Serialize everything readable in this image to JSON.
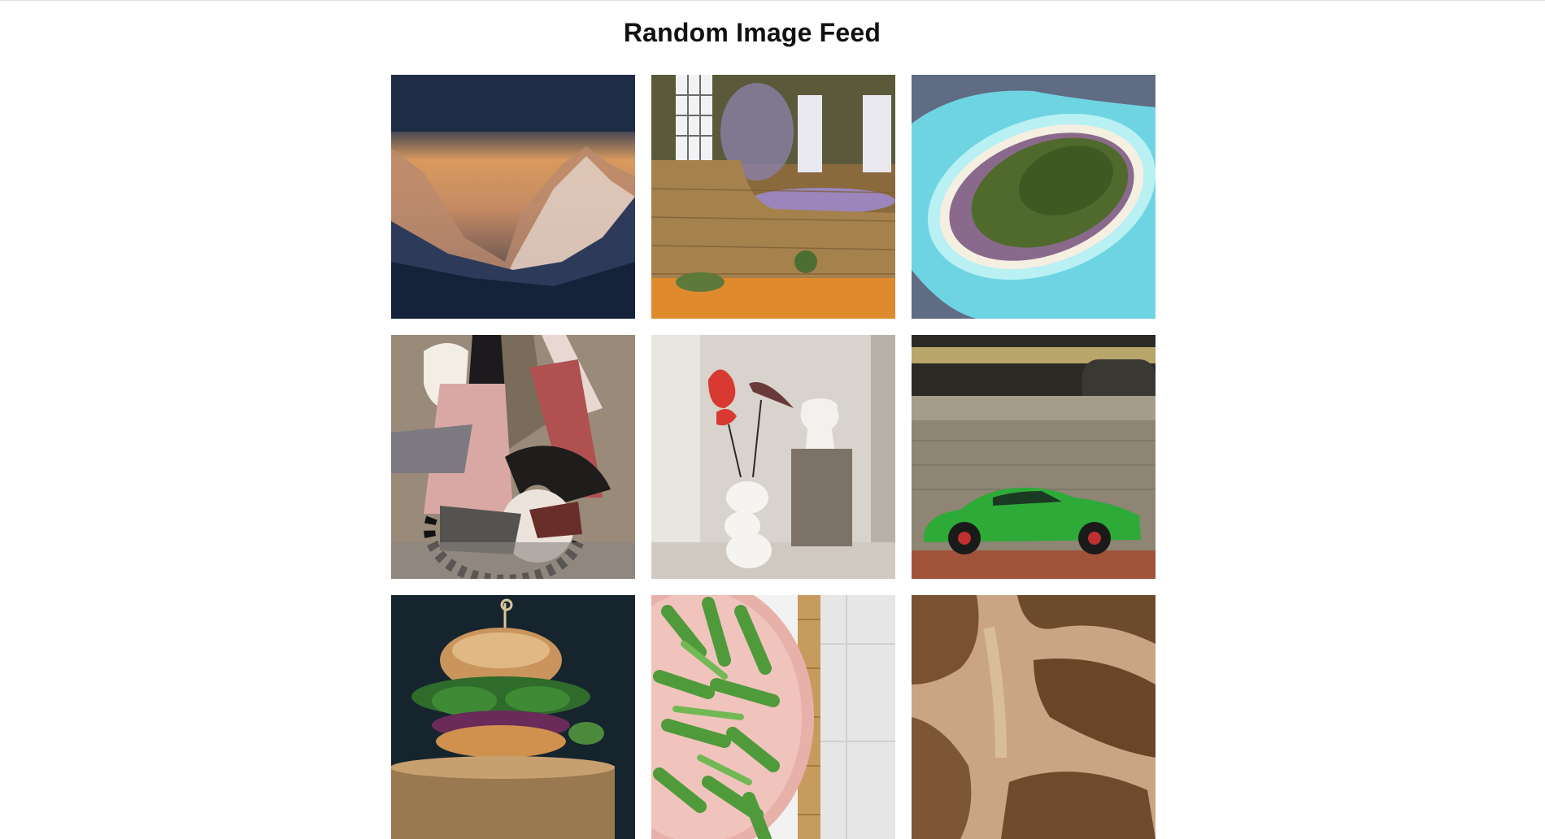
{
  "page": {
    "title": "Random Image Feed"
  },
  "feed": {
    "images": [
      {
        "subject": "mountain-sunset-photo"
      },
      {
        "subject": "stone-wall-garden-photo"
      },
      {
        "subject": "aerial-island-photo"
      },
      {
        "subject": "abstract-painting-photo"
      },
      {
        "subject": "vase-flowers-photo"
      },
      {
        "subject": "green-car-photo"
      },
      {
        "subject": "burger-photo"
      },
      {
        "subject": "green-beans-photo"
      },
      {
        "subject": "giraffe-fur-photo"
      }
    ]
  }
}
